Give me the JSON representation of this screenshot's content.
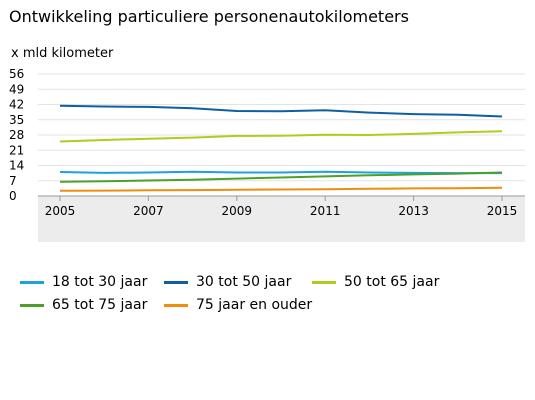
{
  "chart_data": {
    "type": "line",
    "title": "Ontwikkeling particuliere personenautokilometers",
    "ylabel": "x mld kilometer",
    "xlabel": "",
    "x": [
      2005,
      2006,
      2007,
      2008,
      2009,
      2010,
      2011,
      2012,
      2013,
      2014,
      2015
    ],
    "x_tick_labels": [
      "2005",
      "2007",
      "2009",
      "2011",
      "2013",
      "2015"
    ],
    "y_ticks": [
      0,
      7,
      14,
      21,
      28,
      35,
      42,
      49,
      56
    ],
    "ylim": [
      0,
      56
    ],
    "grid": true,
    "legend_position": "bottom",
    "series": [
      {
        "name": "18 tot 30 jaar",
        "color": "#1aa3dd",
        "values": [
          11.0,
          10.6,
          10.8,
          11.1,
          10.8,
          10.8,
          11.1,
          10.8,
          10.6,
          10.5,
          10.5
        ]
      },
      {
        "name": "30 tot 50 jaar",
        "color": "#0f5fa3",
        "values": [
          41.4,
          41.1,
          40.9,
          40.3,
          39.0,
          38.9,
          39.4,
          38.3,
          37.6,
          37.3,
          36.5
        ]
      },
      {
        "name": "50 tot 65 jaar",
        "color": "#b2cc1e",
        "values": [
          25.0,
          25.7,
          26.3,
          26.8,
          27.6,
          27.7,
          28.1,
          28.0,
          28.5,
          29.2,
          29.7
        ]
      },
      {
        "name": "65 tot 75 jaar",
        "color": "#4ba029",
        "values": [
          6.5,
          6.8,
          7.1,
          7.5,
          8.0,
          8.5,
          9.0,
          9.5,
          9.9,
          10.3,
          10.8
        ]
      },
      {
        "name": "75 jaar en ouder",
        "color": "#f08c0f",
        "values": [
          2.4,
          2.5,
          2.6,
          2.7,
          2.9,
          3.0,
          3.1,
          3.3,
          3.5,
          3.6,
          3.8
        ]
      }
    ]
  }
}
